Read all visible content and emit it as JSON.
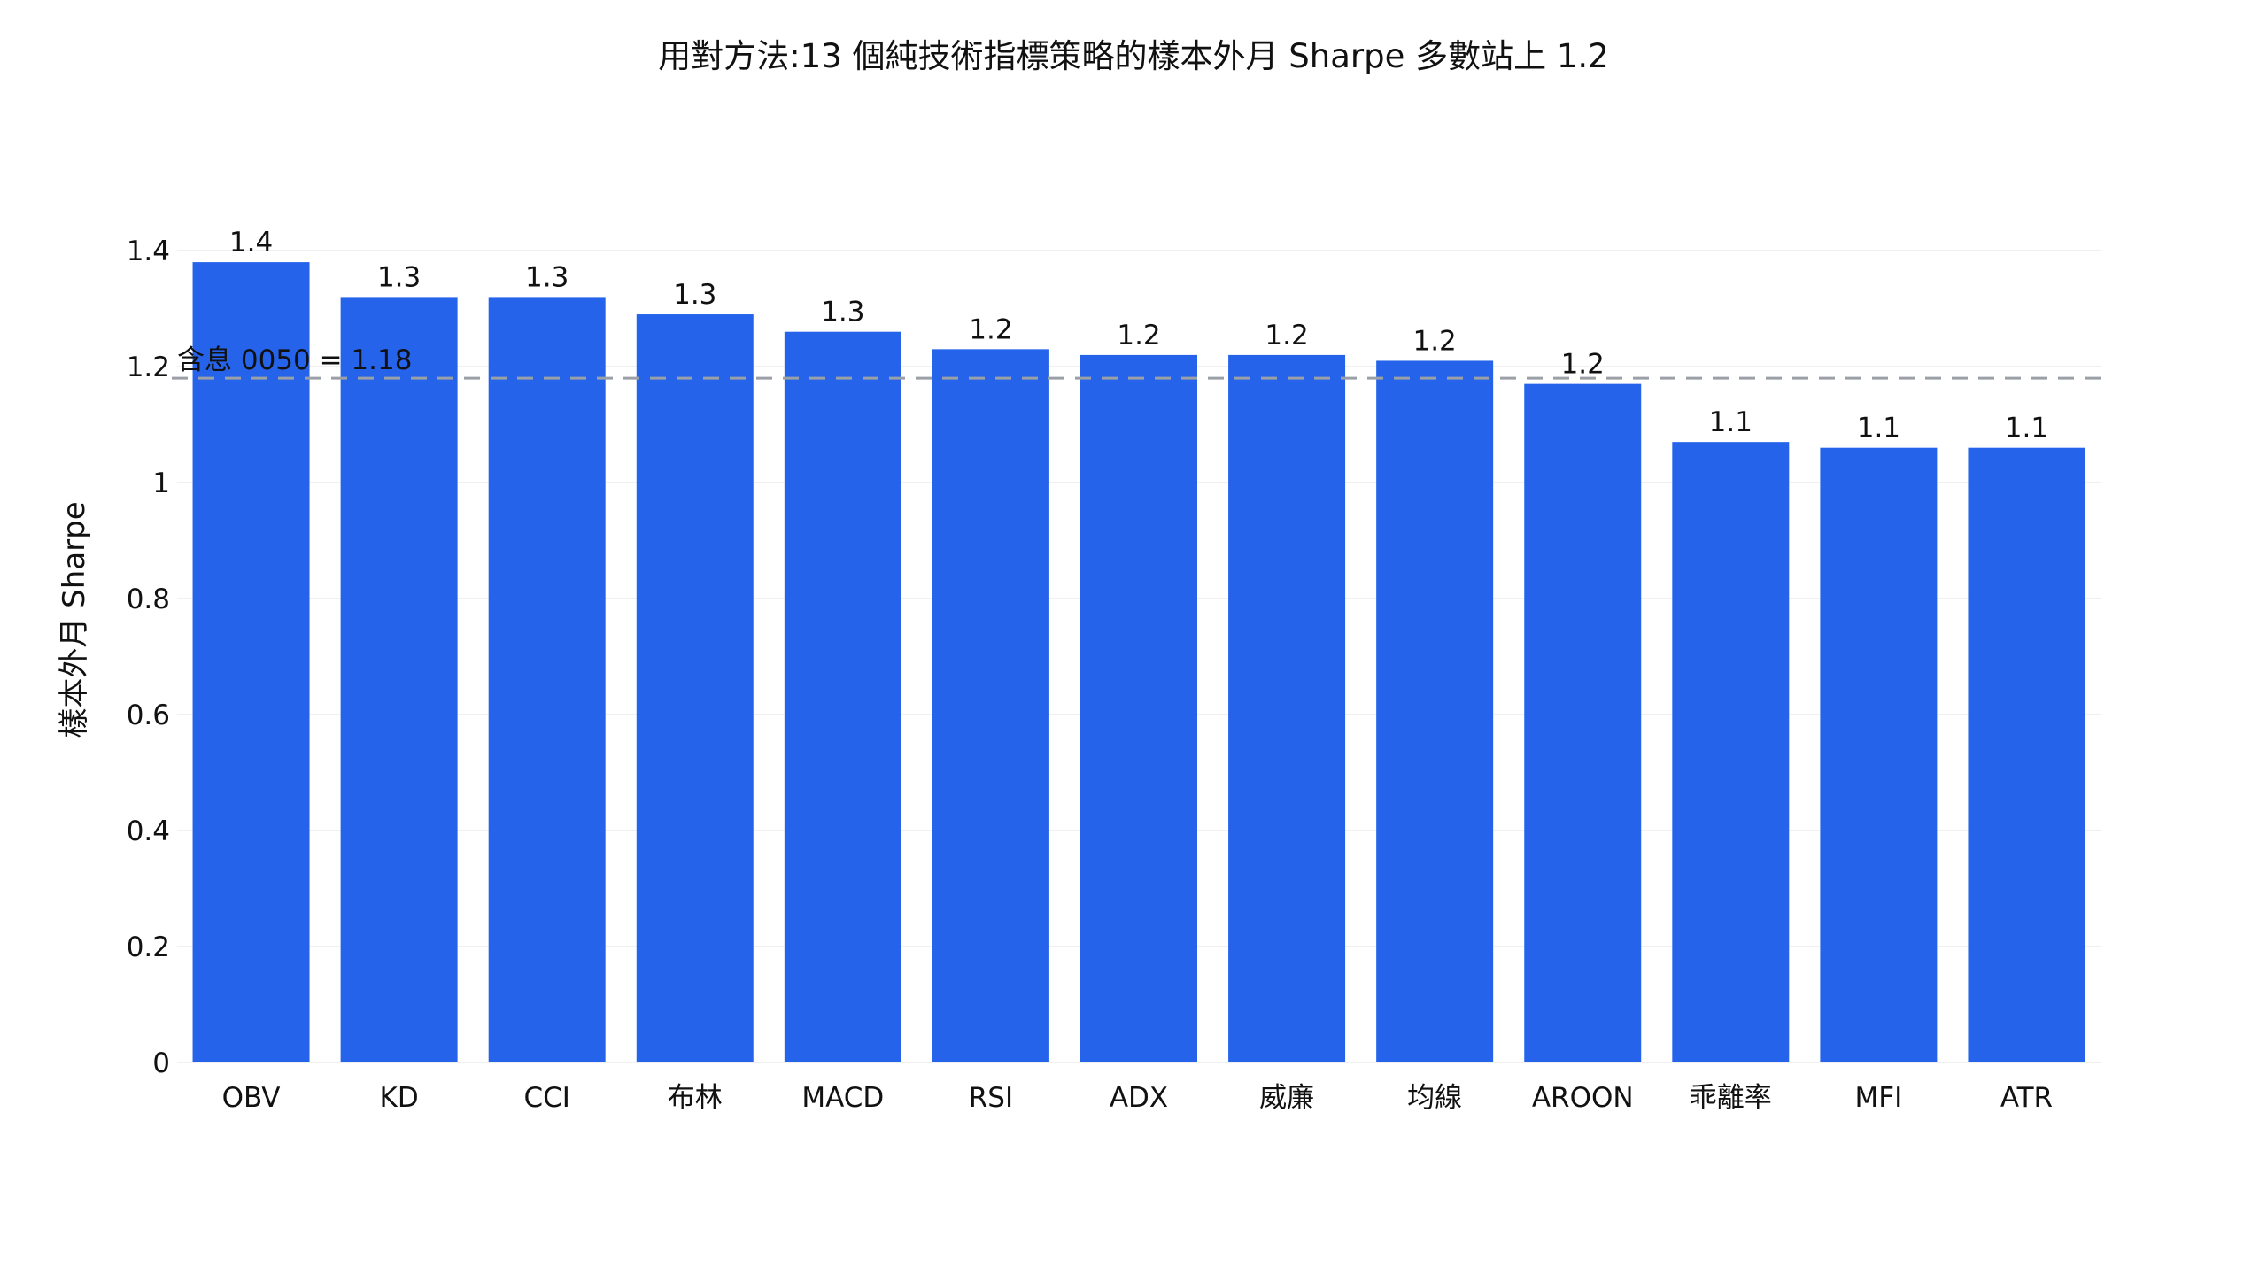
{
  "chart_data": {
    "type": "bar",
    "title": "用對方法:13 個純技術指標策略的樣本外月 Sharpe 多數站上 1.2",
    "ylabel": "樣本外月 Sharpe",
    "xlabel": "",
    "ylim": [
      0,
      1.4
    ],
    "yticks": [
      0,
      0.2,
      0.4,
      0.6,
      0.8,
      1,
      1.2,
      1.4
    ],
    "ytick_labels": [
      "0",
      "0.2",
      "0.4",
      "0.6",
      "0.8",
      "1",
      "1.2",
      "1.4"
    ],
    "categories": [
      "OBV",
      "KD",
      "CCI",
      "布林",
      "MACD",
      "RSI",
      "ADX",
      "威廉",
      "均線",
      "AROON",
      "乖離率",
      "MFI",
      "ATR"
    ],
    "values": [
      1.38,
      1.32,
      1.32,
      1.29,
      1.26,
      1.23,
      1.22,
      1.22,
      1.21,
      1.17,
      1.07,
      1.06,
      1.06
    ],
    "data_labels": [
      "1.4",
      "1.3",
      "1.3",
      "1.3",
      "1.3",
      "1.2",
      "1.2",
      "1.2",
      "1.2",
      "1.2",
      "1.1",
      "1.1",
      "1.1"
    ],
    "reference_line": {
      "value": 1.18,
      "label": "含息 0050 = 1.18",
      "style": "dashed"
    },
    "grid": true,
    "bar_color": "#2563eb",
    "reference_color": "#9aa0a6"
  }
}
